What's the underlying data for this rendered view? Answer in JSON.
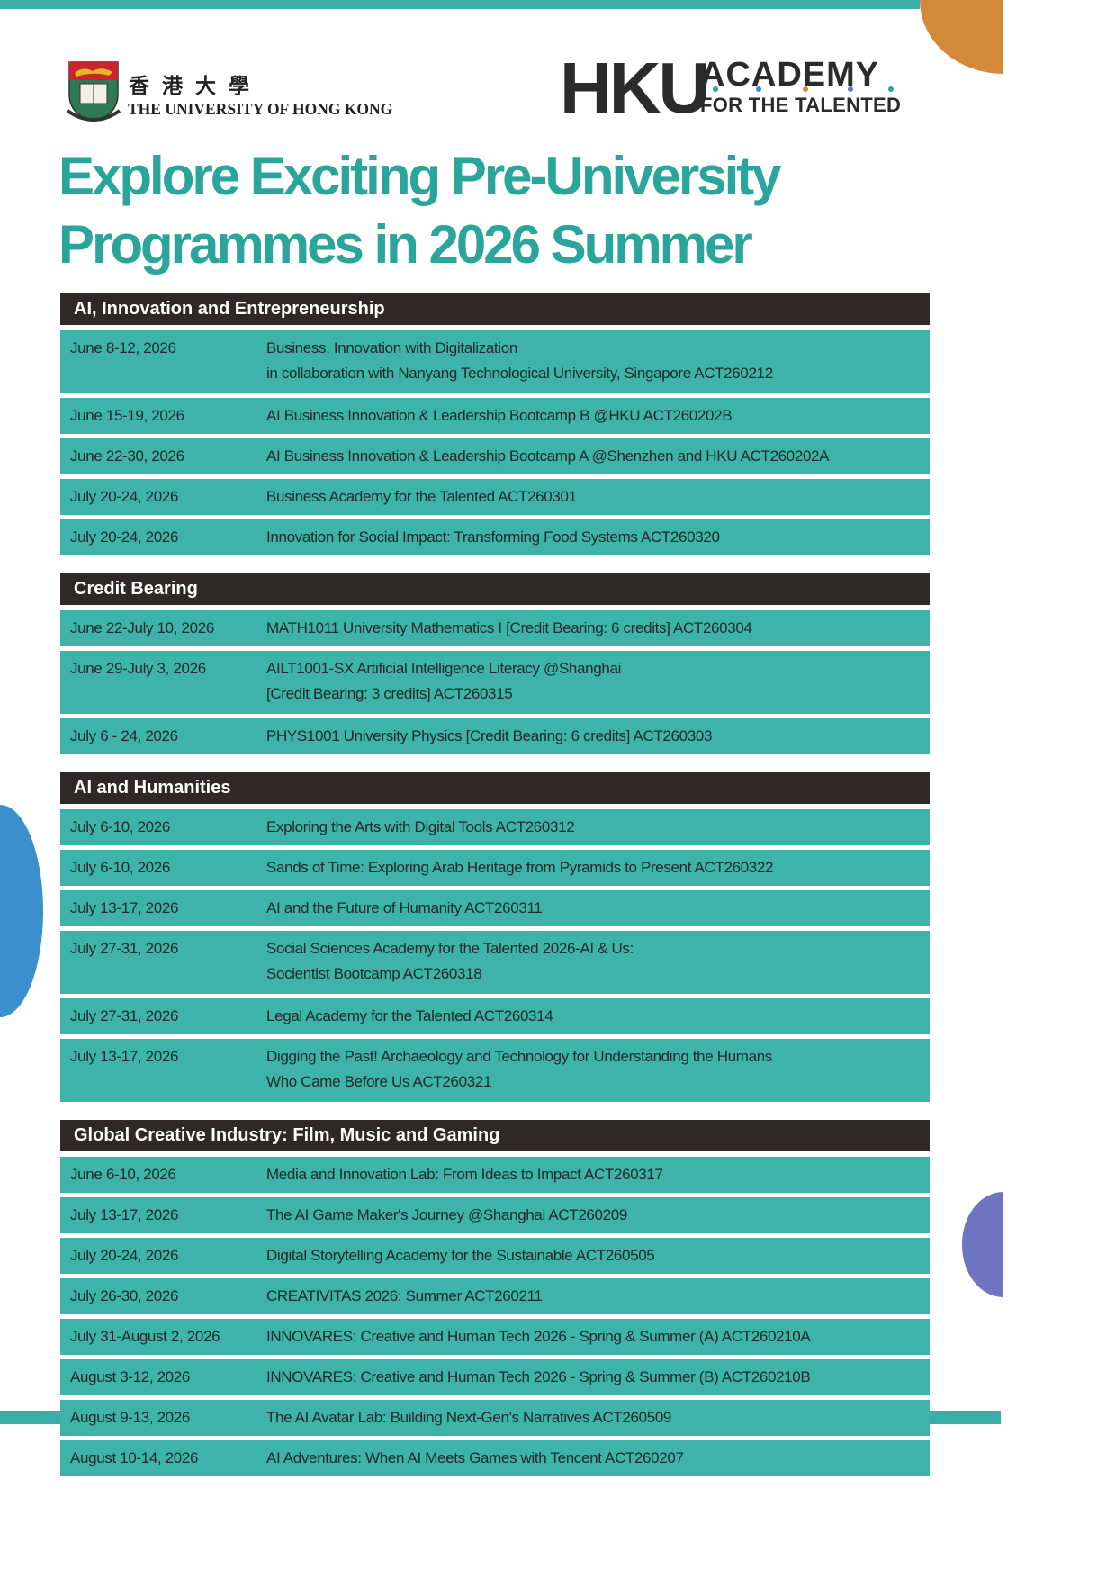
{
  "university": {
    "name_cn": "香港大學",
    "name_en": "THE UNIVERSITY OF HONG KONG"
  },
  "academy": {
    "hku": "HKU",
    "academy": "ACADEMY",
    "tagline": "FOR THE TALENTED",
    "dot_colors": [
      "#2aa59b",
      "#3a8fcc",
      "#d3883a",
      "#6f74c0"
    ]
  },
  "title": {
    "line1": "Explore Exciting Pre-University",
    "line2": "Programmes in 2026 Summer"
  },
  "colors": {
    "accent_teal": "#2aa59b",
    "row_teal": "#3db3aa",
    "header_dark": "#2f2826",
    "orange": "#d3883a",
    "blue": "#3a8fcc",
    "purple": "#6f74c0"
  },
  "sections": [
    {
      "heading": "AI, Innovation and Entrepreneurship",
      "rows": [
        {
          "date": "June 8-12, 2026",
          "title": "Business, Innovation with Digitalization",
          "title2": "in collaboration with Nanyang Technological University, Singapore ACT260212"
        },
        {
          "date": "June 15-19, 2026",
          "title": "AI Business Innovation & Leadership Bootcamp B @HKU ACT260202B"
        },
        {
          "date": "June 22-30, 2026",
          "title": "AI Business Innovation & Leadership Bootcamp A @Shenzhen and HKU ACT260202A"
        },
        {
          "date": "July 20-24, 2026",
          "title": "Business Academy for the Talented ACT260301"
        },
        {
          "date": "July 20-24, 2026",
          "title": "Innovation for Social Impact: Transforming Food Systems ACT260320"
        }
      ]
    },
    {
      "heading": "Credit Bearing",
      "rows": [
        {
          "date": "June 22-July 10, 2026",
          "title": "MATH1011 University Mathematics I [Credit Bearing: 6 credits] ACT260304"
        },
        {
          "date": "June 29-July 3, 2026",
          "title": "AILT1001-SX Artificial Intelligence Literacy @Shanghai",
          "title2": "[Credit Bearing: 3 credits] ACT260315"
        },
        {
          "date": "July 6 - 24, 2026",
          "title": "PHYS1001 University Physics [Credit Bearing: 6 credits] ACT260303"
        }
      ]
    },
    {
      "heading": "AI and Humanities",
      "rows": [
        {
          "date": "July 6-10, 2026",
          "title": "Exploring the Arts with Digital Tools ACT260312"
        },
        {
          "date": "July 6-10, 2026",
          "title": "Sands of Time: Exploring Arab Heritage from Pyramids to Present ACT260322"
        },
        {
          "date": "July 13-17, 2026",
          "title": "AI and the Future of Humanity ACT260311"
        },
        {
          "date": "July 27-31, 2026",
          "title": "Social Sciences Academy for the Talented 2026-AI & Us:",
          "title2": "Socientist Bootcamp ACT260318"
        },
        {
          "date": "July 27-31, 2026",
          "title": "Legal Academy for the Talented ACT260314"
        },
        {
          "date": "July 13-17, 2026",
          "title": "Digging the Past! Archaeology and Technology for Understanding the Humans",
          "title2": "Who Came Before Us ACT260321"
        }
      ]
    },
    {
      "heading": "Global Creative Industry: Film, Music and Gaming",
      "rows": [
        {
          "date": "June 6-10, 2026",
          "title": "Media and Innovation Lab: From Ideas to Impact ACT260317"
        },
        {
          "date": "July 13-17, 2026",
          "title": "The AI Game Maker's Journey @Shanghai ACT260209"
        },
        {
          "date": "July 20-24, 2026",
          "title": "Digital Storytelling Academy for the Sustainable ACT260505"
        },
        {
          "date": "July 26-30, 2026",
          "title": "CREATIVITAS 2026: Summer ACT260211"
        },
        {
          "date": "July 31-August 2, 2026",
          "title": "INNOVARES: Creative and Human Tech 2026 - Spring & Summer (A) ACT260210A"
        },
        {
          "date": "August 3-12, 2026",
          "title": "INNOVARES: Creative and Human Tech 2026 - Spring & Summer (B) ACT260210B"
        },
        {
          "date": "August 9-13, 2026",
          "title": "The AI Avatar Lab: Building Next-Gen's Narratives ACT260509"
        },
        {
          "date": "August 10-14, 2026",
          "title": "AI Adventures: When AI Meets Games with Tencent ACT260207"
        }
      ]
    }
  ]
}
